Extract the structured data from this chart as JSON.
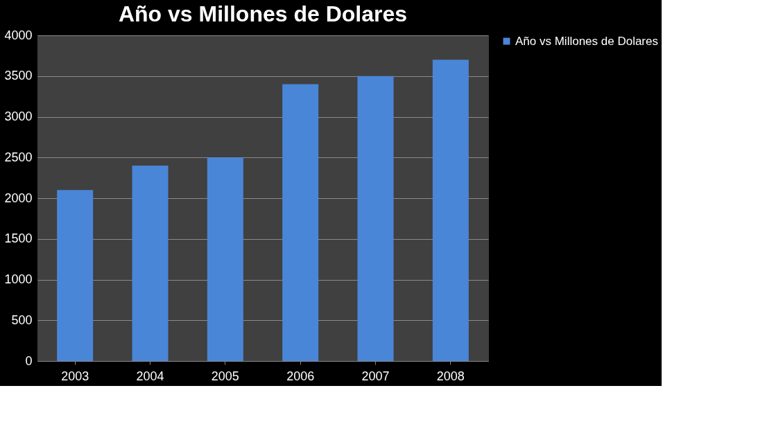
{
  "chart_data": {
    "type": "bar",
    "title": "Año vs Millones de Dolares",
    "categories": [
      "2003",
      "2004",
      "2005",
      "2006",
      "2007",
      "2008"
    ],
    "series": [
      {
        "name": "Año vs Millones de Dolares",
        "color": "#4a86d8",
        "values": [
          2100,
          2400,
          2500,
          3400,
          3500,
          3700
        ]
      }
    ],
    "ylim": [
      0,
      4000
    ],
    "yticks": [
      0,
      500,
      1000,
      1500,
      2000,
      2500,
      3000,
      3500,
      4000
    ],
    "grid": "y",
    "legend": "right"
  }
}
